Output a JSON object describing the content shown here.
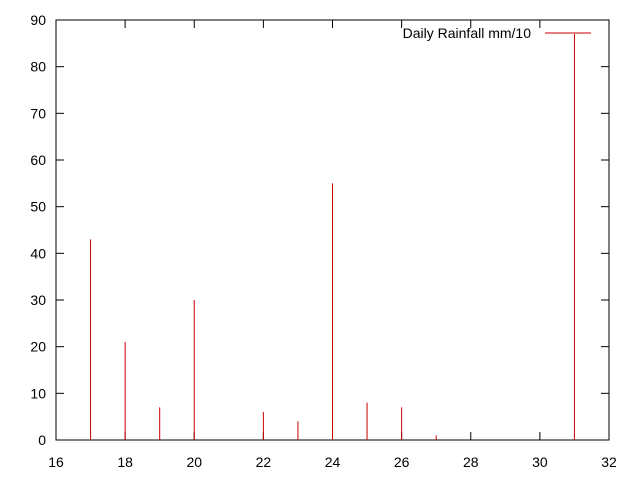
{
  "chart_data": {
    "type": "bar",
    "legend": "top-right",
    "grid": false,
    "xlim": [
      16,
      32
    ],
    "ylim": [
      0,
      90
    ],
    "xticks": [
      16,
      18,
      20,
      22,
      24,
      26,
      28,
      30,
      32
    ],
    "yticks": [
      0,
      10,
      20,
      30,
      40,
      50,
      60,
      70,
      80,
      90
    ],
    "series": [
      {
        "name": "Daily Rainfall mm/10",
        "color": "#cc0000",
        "x": [
          17,
          18,
          19,
          20,
          22,
          23,
          24,
          25,
          26,
          27,
          31
        ],
        "values": [
          43,
          21,
          7,
          30,
          6,
          4,
          55,
          8,
          7,
          1,
          87
        ]
      }
    ]
  }
}
